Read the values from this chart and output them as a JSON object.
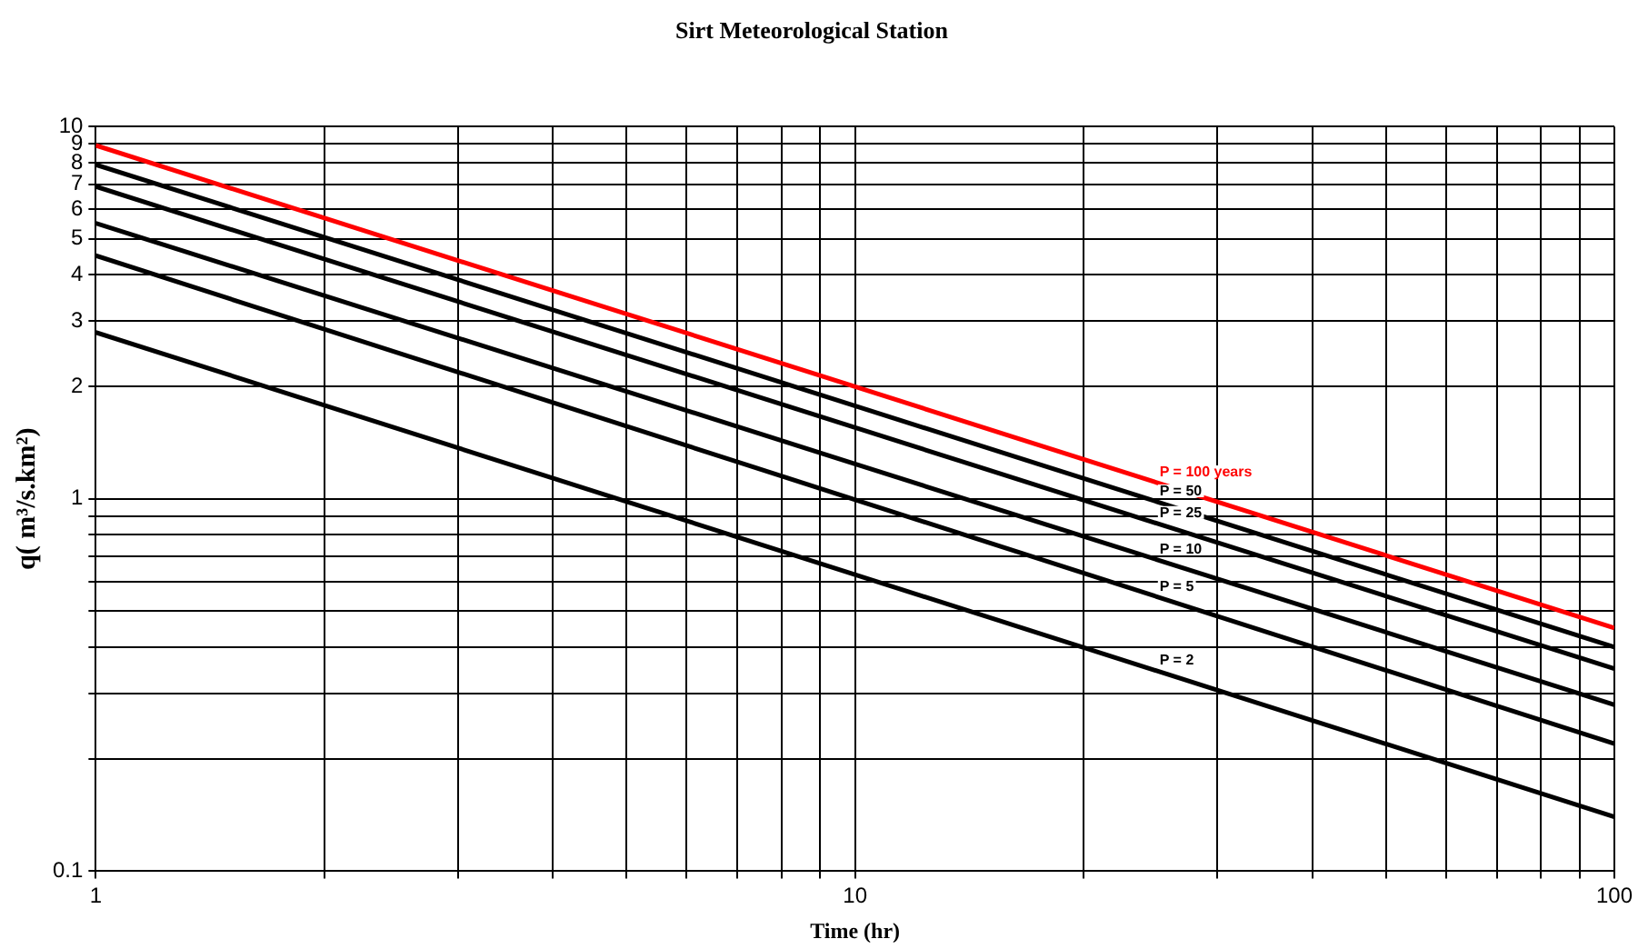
{
  "chart_data": {
    "type": "line",
    "title": "Sirt Meteorological Station",
    "xlabel": "Time (hr)",
    "ylabel": "q( m³/s.km²)",
    "x": [
      1,
      100
    ],
    "log": "xy",
    "grid": true,
    "legend": false,
    "marker": "none",
    "line_style": "solid",
    "xlim": [
      1,
      100
    ],
    "ylim": [
      0.1,
      10
    ],
    "xticks": [
      1,
      {
        "value": 2,
        "label": null
      },
      {
        "value": 3,
        "label": null
      },
      {
        "value": 4,
        "label": null
      },
      {
        "value": 5,
        "label": null
      },
      {
        "value": 6,
        "label": null
      },
      {
        "value": 7,
        "label": null
      },
      {
        "value": 8,
        "label": null
      },
      {
        "value": 9,
        "label": null
      },
      10,
      {
        "value": 20,
        "label": null
      },
      {
        "value": 30,
        "label": null
      },
      {
        "value": 40,
        "label": null
      },
      {
        "value": 50,
        "label": null
      },
      {
        "value": 60,
        "label": null
      },
      {
        "value": 70,
        "label": null
      },
      {
        "value": 80,
        "label": null
      },
      {
        "value": 90,
        "label": null
      },
      100
    ],
    "yticks": [
      0.1,
      {
        "value": 0.2,
        "label": null
      },
      {
        "value": 0.3,
        "label": null
      },
      {
        "value": 0.4,
        "label": null
      },
      {
        "value": 0.5,
        "label": null
      },
      {
        "value": 0.6,
        "label": null
      },
      {
        "value": 0.7,
        "label": null
      },
      {
        "value": 0.8,
        "label": null
      },
      {
        "value": 0.9,
        "label": null
      },
      1,
      2,
      3,
      4,
      5,
      6,
      7,
      8,
      9,
      10
    ],
    "series": [
      {
        "name": "P = 100 years",
        "color": "#ff0000",
        "values": [
          8.9,
          0.45
        ]
      },
      {
        "name": "P = 50",
        "color": "#000000",
        "values": [
          7.9,
          0.4
        ]
      },
      {
        "name": "P = 25",
        "color": "#000000",
        "values": [
          6.9,
          0.35
        ]
      },
      {
        "name": "P = 10",
        "color": "#000000",
        "values": [
          5.5,
          0.28
        ]
      },
      {
        "name": "P = 5",
        "color": "#000000",
        "values": [
          4.5,
          0.22
        ]
      },
      {
        "name": "P = 2",
        "color": "#000000",
        "values": [
          2.8,
          0.14
        ]
      }
    ]
  }
}
